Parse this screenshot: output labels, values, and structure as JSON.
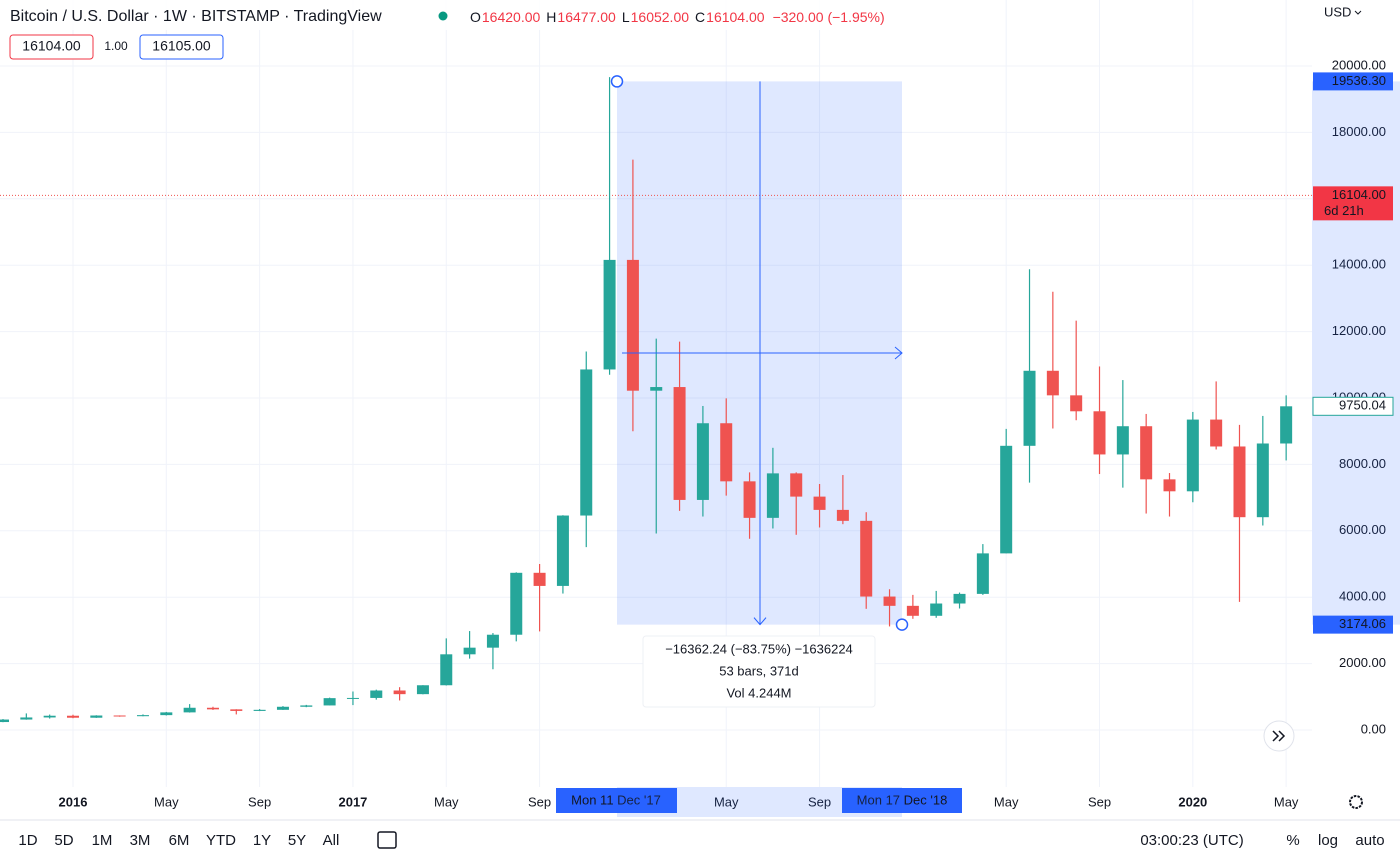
{
  "header": {
    "title": "Bitcoin / U.S. Dollar · 1W · BITSTAMP · TradingView",
    "ohlc": [
      {
        "key": "O",
        "value": "16420.00"
      },
      {
        "key": "H",
        "value": "16477.00"
      },
      {
        "key": "L",
        "value": "16052.00"
      },
      {
        "key": "C",
        "value": "16104.00"
      }
    ],
    "change": "−320.00 (−1.95%)",
    "order_buttons": [
      "16104.00",
      "1.00",
      "16105.00"
    ],
    "currency": "USD"
  },
  "chart_data": {
    "type": "candlestick",
    "categories": [
      null,
      null,
      null,
      "2016",
      null,
      null,
      null,
      "May",
      null,
      null,
      null,
      "Sep",
      null,
      null,
      null,
      "2017",
      null,
      null,
      null,
      "May",
      null,
      null,
      null,
      "Sep",
      null,
      null,
      null,
      null,
      null,
      null,
      null,
      "May",
      null,
      null,
      null,
      "Sep",
      null,
      null,
      null,
      null,
      null,
      null,
      null,
      "May",
      null,
      null,
      null,
      "Sep",
      null,
      null,
      null,
      "2020",
      null,
      null,
      null,
      "May"
    ],
    "open": [
      240,
      315,
      378,
      430,
      370,
      437,
      416,
      448,
      531,
      670,
      622,
      575,
      608,
      700,
      740,
      960,
      966,
      1190,
      1080,
      1348,
      2280,
      2480,
      2870,
      4735,
      4340,
      6460,
      10860,
      14160,
      10220,
      10330,
      6930,
      9240,
      7490,
      6390,
      7730,
      7030,
      6630,
      6300,
      4020,
      3740,
      3440,
      3810,
      4100,
      5320,
      8560,
      10820,
      10080,
      9600,
      8300,
      9150,
      7550,
      7190,
      9350,
      8540,
      6410,
      8630
    ],
    "high": [
      330,
      500,
      465,
      460,
      445,
      440,
      470,
      545,
      780,
      700,
      625,
      630,
      720,
      757,
      975,
      1160,
      1215,
      1290,
      1350,
      2760,
      2980,
      2920,
      4750,
      5000,
      6470,
      11400,
      19666,
      17180,
      11790,
      11700,
      9760,
      9990,
      7760,
      8500,
      7760,
      7410,
      7680,
      6560,
      4240,
      4070,
      4190,
      4140,
      5600,
      9070,
      13880,
      13200,
      12330,
      10950,
      10540,
      9520,
      7740,
      9580,
      10500,
      9190,
      9460,
      10080
    ],
    "low": [
      235,
      310,
      345,
      355,
      365,
      400,
      415,
      437,
      525,
      605,
      470,
      570,
      605,
      687,
      740,
      750,
      915,
      890,
      1075,
      1340,
      2150,
      1830,
      2670,
      2970,
      4110,
      5510,
      10700,
      9000,
      5920,
      6600,
      6430,
      7060,
      5760,
      6070,
      5880,
      6100,
      6200,
      3650,
      3120,
      3350,
      3380,
      3660,
      4070,
      5320,
      7450,
      9080,
      9330,
      7710,
      7300,
      6520,
      6430,
      6860,
      8450,
      3860,
      6160,
      8120
    ],
    "close": [
      315,
      378,
      430,
      370,
      437,
      416,
      448,
      531,
      670,
      622,
      575,
      608,
      700,
      740,
      960,
      966,
      1190,
      1080,
      1348,
      2280,
      2480,
      2870,
      4735,
      4340,
      6460,
      10860,
      14160,
      10220,
      10330,
      6930,
      9240,
      7490,
      6390,
      7730,
      7030,
      6630,
      6300,
      4020,
      3740,
      3440,
      3810,
      4100,
      5320,
      8560,
      10820,
      10080,
      9600,
      8300,
      9150,
      7550,
      7190,
      9350,
      8540,
      6410,
      8630,
      9750
    ],
    "up_color": "#26a69a",
    "down_color": "#ef5350",
    "ylim": [
      -1807,
      21988
    ],
    "yticks": [
      {
        "value": 0,
        "label": "0.00"
      },
      {
        "value": 2000,
        "label": "2000.00"
      },
      {
        "value": 4000,
        "label": "4000.00"
      },
      {
        "value": 6000,
        "label": "6000.00"
      },
      {
        "value": 8000,
        "label": "8000.00"
      },
      {
        "value": 10000,
        "label": "10000.00"
      },
      {
        "value": 12000,
        "label": "12000.00"
      },
      {
        "value": 14000,
        "label": "14000.00"
      },
      {
        "value": 16000,
        "label": "16000.00"
      },
      {
        "value": 18000,
        "label": "18000.00"
      },
      {
        "value": 20000,
        "label": "20000.00"
      }
    ],
    "grid": true,
    "measure": {
      "top": {
        "value": 19536.3,
        "label": "19536.30"
      },
      "bottom": {
        "value": 3174.06,
        "label": "3174.06"
      },
      "change": "−16362.24 (−83.75%) −1636224",
      "bars": "53 bars, 371d",
      "volume": "Vol 4.244M",
      "start_date": "Mon 11 Dec '17",
      "end_date": "Mon 17 Dec '18"
    },
    "price_line": {
      "value": 16104,
      "label": "16104.00",
      "countdown": "6d 21h"
    },
    "last_value": {
      "value": 9750.04,
      "label": "9750.04"
    }
  },
  "toolbar": {
    "ranges": [
      "1D",
      "5D",
      "1M",
      "3M",
      "6M",
      "YTD",
      "1Y",
      "5Y",
      "All"
    ],
    "time": "03:00:23 (UTC)",
    "options": [
      "%",
      "log",
      "auto"
    ]
  }
}
